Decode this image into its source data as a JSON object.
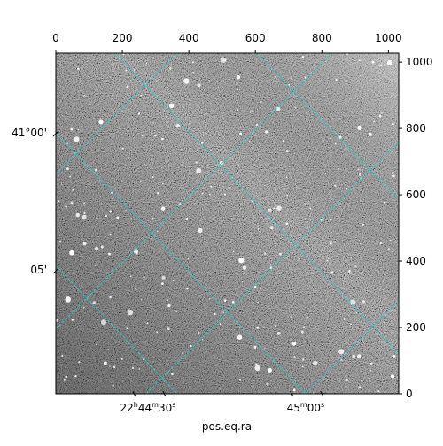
{
  "chart_data": {
    "type": "image",
    "xlabel": "pos.eq.ra",
    "xlim": [
      0,
      1031
    ],
    "xticks": [
      0,
      200,
      400,
      600,
      800,
      1000
    ],
    "ylim": [
      0,
      1027
    ],
    "yticks": [
      0,
      200,
      400,
      600,
      800,
      1000
    ],
    "ra_ticks": [
      {
        "value": 277,
        "label": "22h44m30s"
      },
      {
        "value": 751,
        "label": "45m00s"
      }
    ],
    "dec_ticks": [
      {
        "value": 787,
        "label": "41°00'"
      },
      {
        "value": 373,
        "label": "05'"
      }
    ],
    "grid_color": "#20d0d0"
  }
}
